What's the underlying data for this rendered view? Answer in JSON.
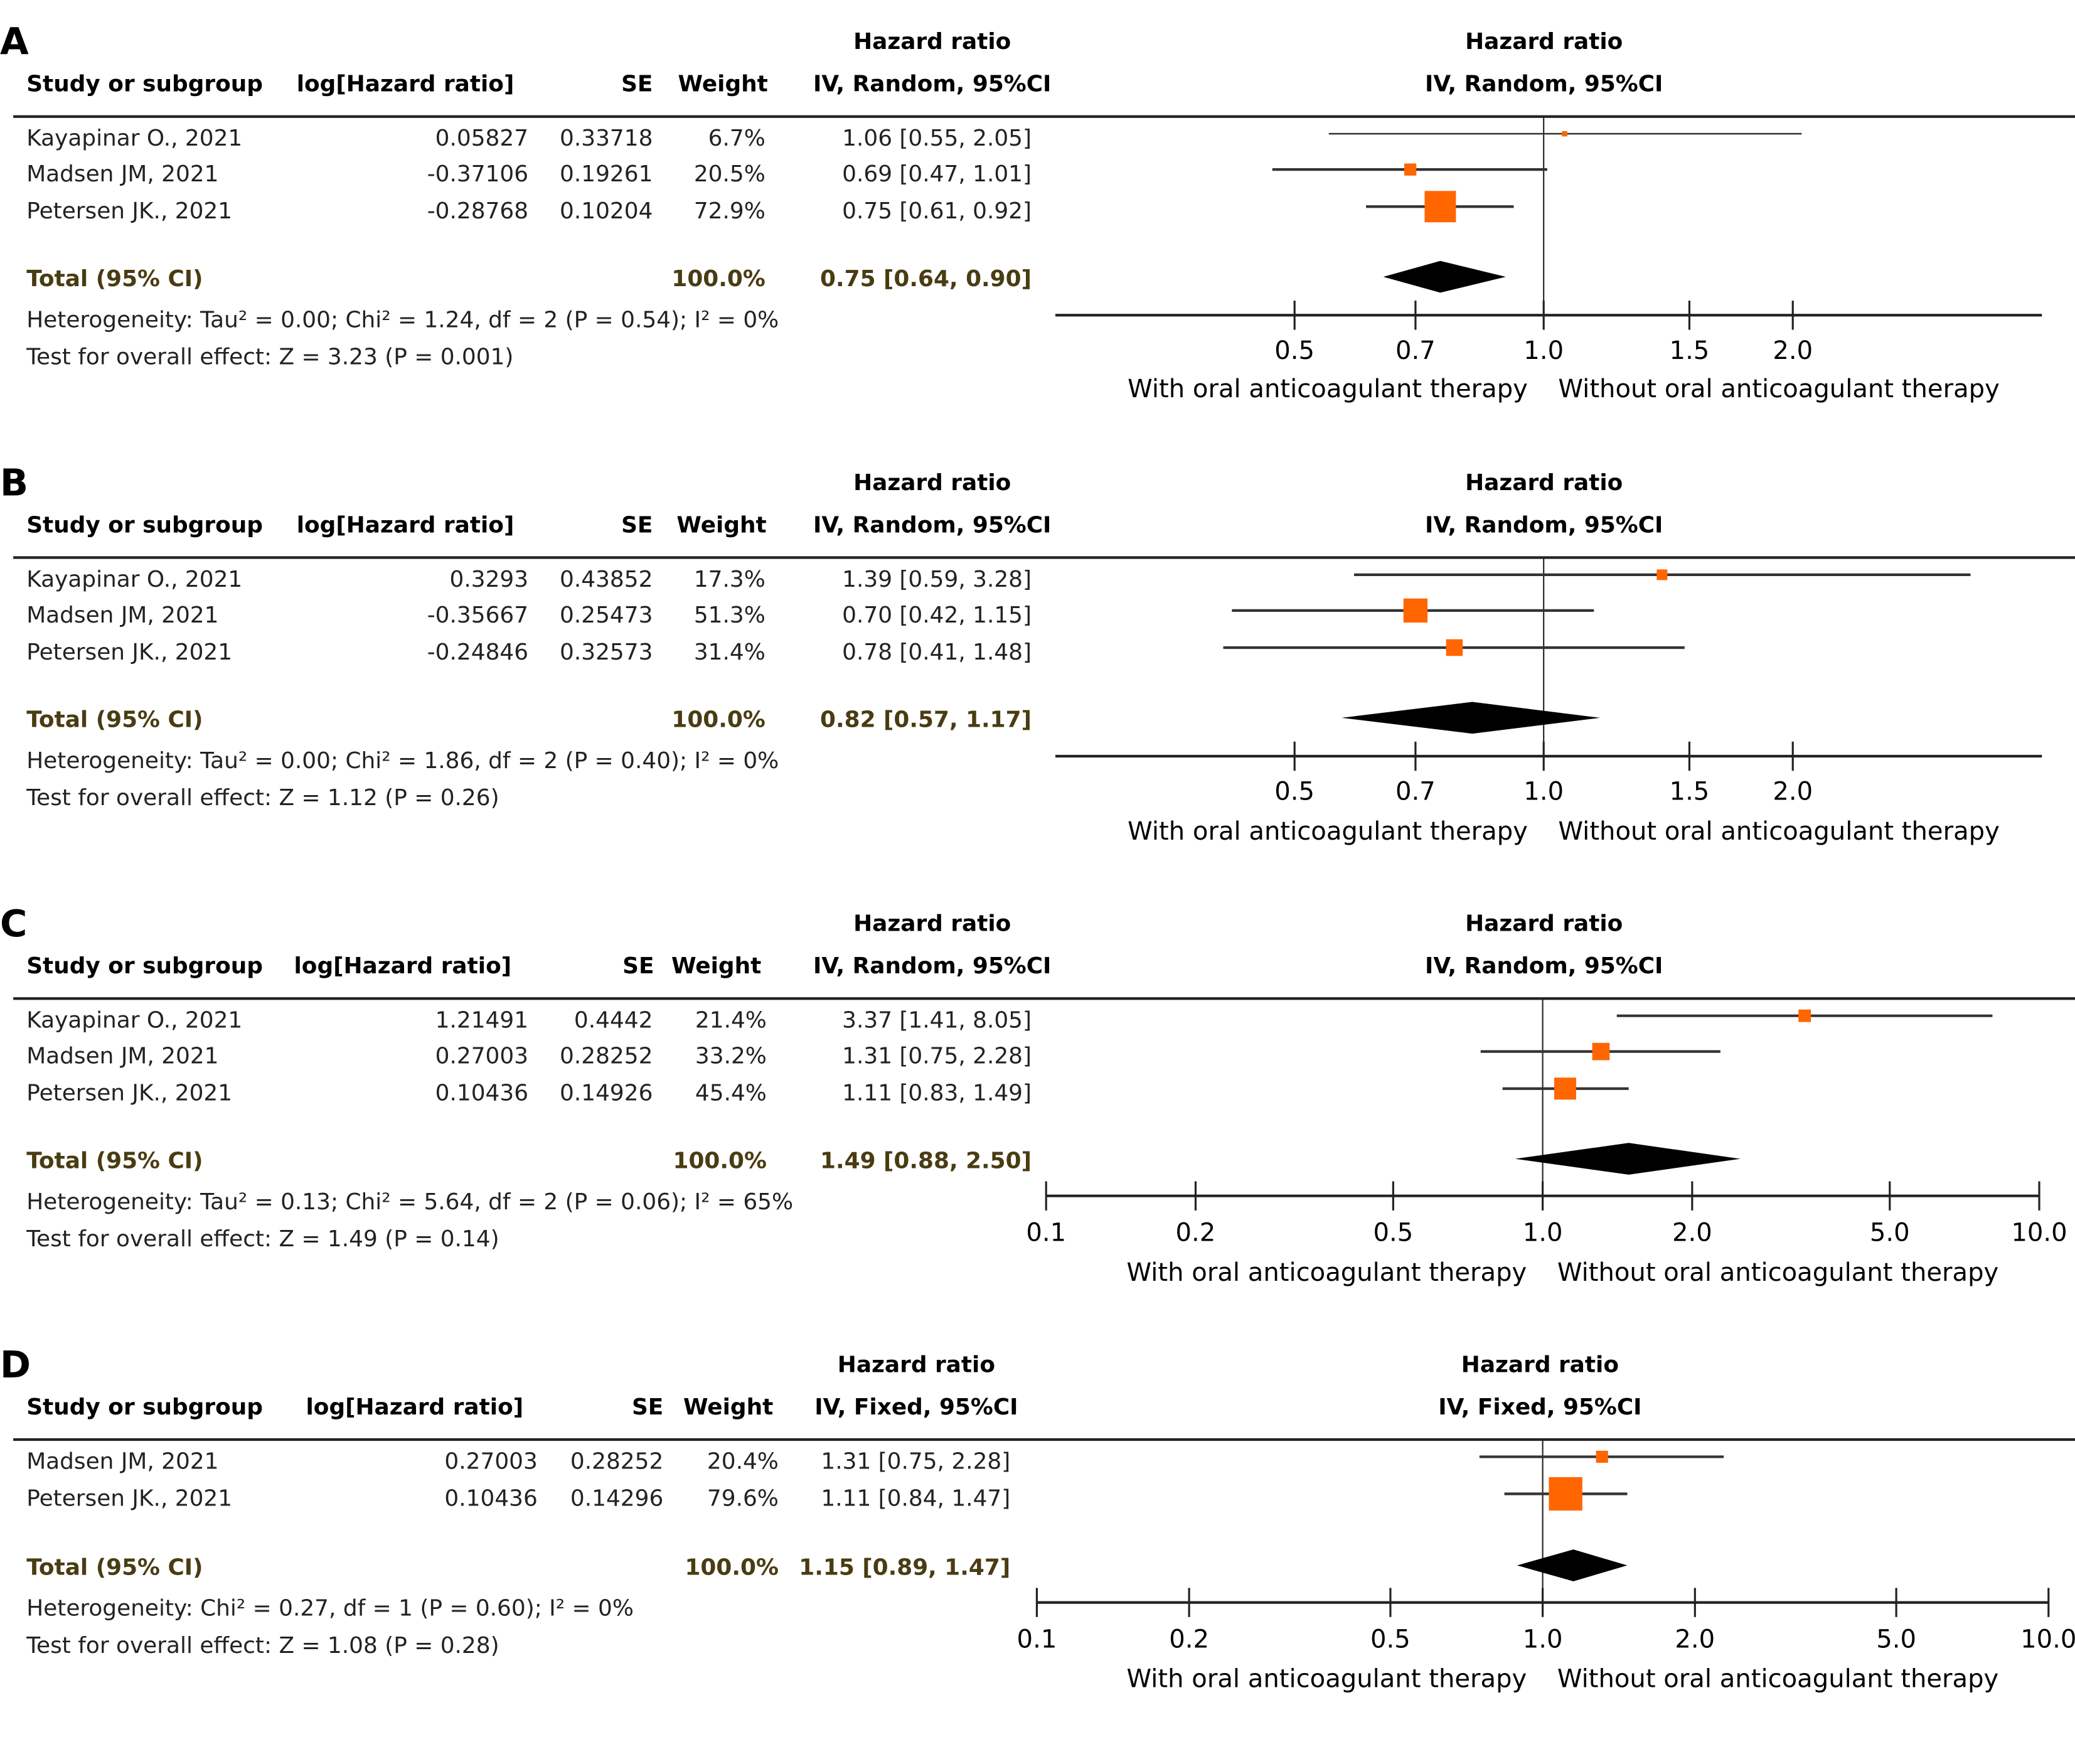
{
  "colors": {
    "box": "#ff6600",
    "diamond": "#000000",
    "line": "#333333",
    "total_text": "#4a3c12"
  },
  "chart_data": [
    {
      "type": "forest",
      "letter": "A",
      "header_top": "Hazard ratio",
      "columns": [
        "Study or subgroup",
        "log[Hazard ratio]",
        "SE",
        "Weight",
        "IV, Random, 95%CI"
      ],
      "plot_header": [
        "Hazard ratio",
        "IV, Random, 95%CI"
      ],
      "studies": [
        {
          "name": "Kayapinar O., 2021",
          "loghr": "0.05827",
          "se": "0.33718",
          "weight": "6.7%",
          "ci": "1.06 [0.55, 2.05]",
          "w": 6.7,
          "hr": 1.06,
          "lo": 0.55,
          "hi": 2.05
        },
        {
          "name": "Madsen JM, 2021",
          "loghr": "-0.37106",
          "se": "0.19261",
          "weight": "20.5%",
          "ci": "0.69 [0.47, 1.01]",
          "w": 20.5,
          "hr": 0.69,
          "lo": 0.47,
          "hi": 1.01
        },
        {
          "name": "Petersen JK., 2021",
          "loghr": "-0.28768",
          "se": "0.10204",
          "weight": "72.9%",
          "ci": "0.75 [0.61, 0.92]",
          "w": 72.9,
          "hr": 0.75,
          "lo": 0.61,
          "hi": 0.92
        }
      ],
      "total": {
        "label": "Total (95% CI)",
        "weight": "100.0%",
        "ci": "0.75 [0.64, 0.90]",
        "hr": 0.75,
        "lo": 0.64,
        "hi": 0.9
      },
      "heterogeneity": "Heterogeneity: Tau² = 0.00; Chi² = 1.24, df = 2 (P = 0.54); I² = 0%",
      "overall": "Test for overall effect: Z = 3.23 (P = 0.001)",
      "axis": {
        "scale": "log",
        "xlim": [
          0.257,
          4.0
        ],
        "ticks": [
          "0.5",
          "0.7",
          "1.0",
          "1.5",
          "2.0"
        ],
        "tick_values": [
          0.5,
          0.7,
          1,
          1.5,
          2
        ]
      },
      "legend": [
        "With oral anticoagulant therapy",
        "Without oral anticoagulant therapy"
      ]
    },
    {
      "type": "forest",
      "letter": "B",
      "header_top": "Hazard ratio",
      "columns": [
        "Study or subgroup",
        "log[Hazard ratio]",
        "SE",
        "Weight",
        "IV, Random, 95%CI"
      ],
      "plot_header": [
        "Hazard ratio",
        "IV, Random, 95%CI"
      ],
      "studies": [
        {
          "name": "Kayapinar O., 2021",
          "loghr": "0.3293",
          "se": "0.43852",
          "weight": "17.3%",
          "ci": "1.39 [0.59, 3.28]",
          "w": 17.3,
          "hr": 1.39,
          "lo": 0.59,
          "hi": 3.28
        },
        {
          "name": "Madsen JM, 2021",
          "loghr": "-0.35667",
          "se": "0.25473",
          "weight": "51.3%",
          "ci": "0.70 [0.42, 1.15]",
          "w": 51.3,
          "hr": 0.7,
          "lo": 0.42,
          "hi": 1.15
        },
        {
          "name": "Petersen JK., 2021",
          "loghr": "-0.24846",
          "se": "0.32573",
          "weight": "31.4%",
          "ci": "0.78 [0.41, 1.48]",
          "w": 31.4,
          "hr": 0.78,
          "lo": 0.41,
          "hi": 1.48
        }
      ],
      "total": {
        "label": "Total (95% CI)",
        "weight": "100.0%",
        "ci": "0.82 [0.57, 1.17]",
        "hr": 0.82,
        "lo": 0.57,
        "hi": 1.17
      },
      "heterogeneity": "Heterogeneity: Tau² = 0.00; Chi² = 1.86, df = 2 (P = 0.40); I² = 0%",
      "overall": "Test for overall effect: Z = 1.12 (P = 0.26)",
      "axis": {
        "scale": "log",
        "xlim": [
          0.257,
          4.0
        ],
        "ticks": [
          "0.5",
          "0.7",
          "1.0",
          "1.5",
          "2.0"
        ],
        "tick_values": [
          0.5,
          0.7,
          1,
          1.5,
          2
        ]
      },
      "legend": [
        "With oral anticoagulant therapy",
        "Without oral anticoagulant therapy"
      ]
    },
    {
      "type": "forest",
      "letter": "C",
      "header_top": "Hazard ratio",
      "columns": [
        "Study or subgroup",
        "log[Hazard ratio]",
        "SE",
        "Weight",
        "IV, Random, 95%CI"
      ],
      "plot_header": [
        "Hazard ratio",
        "IV, Random, 95%CI"
      ],
      "studies": [
        {
          "name": "Kayapinar O., 2021",
          "loghr": "1.21491",
          "se": "0.4442",
          "weight": "21.4%",
          "ci": "3.37 [1.41, 8.05]",
          "w": 21.4,
          "hr": 3.37,
          "lo": 1.41,
          "hi": 8.05
        },
        {
          "name": "Madsen JM, 2021",
          "loghr": "0.27003",
          "se": "0.28252",
          "weight": "33.2%",
          "ci": "1.31 [0.75, 2.28]",
          "w": 33.2,
          "hr": 1.31,
          "lo": 0.75,
          "hi": 2.28
        },
        {
          "name": "Petersen JK., 2021",
          "loghr": "0.10436",
          "se": "0.14926",
          "weight": "45.4%",
          "ci": "1.11 [0.83, 1.49]",
          "w": 45.4,
          "hr": 1.11,
          "lo": 0.83,
          "hi": 1.49
        }
      ],
      "total": {
        "label": "Total (95% CI)",
        "weight": "100.0%",
        "ci": "1.49 [0.88, 2.50]",
        "hr": 1.49,
        "lo": 0.88,
        "hi": 2.5
      },
      "heterogeneity": "Heterogeneity: Tau² = 0.13; Chi² = 5.64, df = 2 (P = 0.06); I² = 65%",
      "overall": "Test for overall effect: Z = 1.49 (P = 0.14)",
      "axis": {
        "scale": "log",
        "xlim": [
          0.1,
          10
        ],
        "ticks": [
          "0.1",
          "0.2",
          "0.5",
          "1.0",
          "2.0",
          "5.0",
          "10.0"
        ],
        "tick_values": [
          0.1,
          0.2,
          0.5,
          1,
          2,
          5,
          10
        ]
      },
      "legend": [
        "With oral anticoagulant therapy",
        "Without oral anticoagulant therapy"
      ]
    },
    {
      "type": "forest",
      "letter": "D",
      "header_top": "Hazard ratio",
      "columns": [
        "Study or subgroup",
        "log[Hazard ratio]",
        "SE",
        "Weight",
        "IV, Fixed, 95%CI"
      ],
      "plot_header": [
        "Hazard ratio",
        "IV, Fixed, 95%CI"
      ],
      "studies": [
        {
          "name": "Madsen JM, 2021",
          "loghr": "0.27003",
          "se": "0.28252",
          "weight": "20.4%",
          "ci": "1.31 [0.75, 2.28]",
          "w": 20.4,
          "hr": 1.31,
          "lo": 0.75,
          "hi": 2.28
        },
        {
          "name": "Petersen JK., 2021",
          "loghr": "0.10436",
          "se": "0.14296",
          "weight": "79.6%",
          "ci": "1.11 [0.84, 1.47]",
          "w": 79.6,
          "hr": 1.11,
          "lo": 0.84,
          "hi": 1.47
        }
      ],
      "total": {
        "label": "Total (95% CI)",
        "weight": "100.0%",
        "ci": "1.15 [0.89, 1.47]",
        "hr": 1.15,
        "lo": 0.89,
        "hi": 1.47
      },
      "heterogeneity": "Heterogeneity: Chi² = 0.27, df = 1 (P = 0.60); I² = 0%",
      "overall": "Test for overall effect: Z = 1.08 (P = 0.28)",
      "axis": {
        "scale": "log",
        "xlim": [
          0.1,
          10
        ],
        "ticks": [
          "0.1",
          "0.2",
          "0.5",
          "1.0",
          "2.0",
          "5.0",
          "10.0"
        ],
        "tick_values": [
          0.1,
          0.2,
          0.5,
          1,
          2,
          5,
          10
        ]
      },
      "legend": [
        "With oral anticoagulant therapy",
        "Without oral anticoagulant therapy"
      ]
    }
  ]
}
